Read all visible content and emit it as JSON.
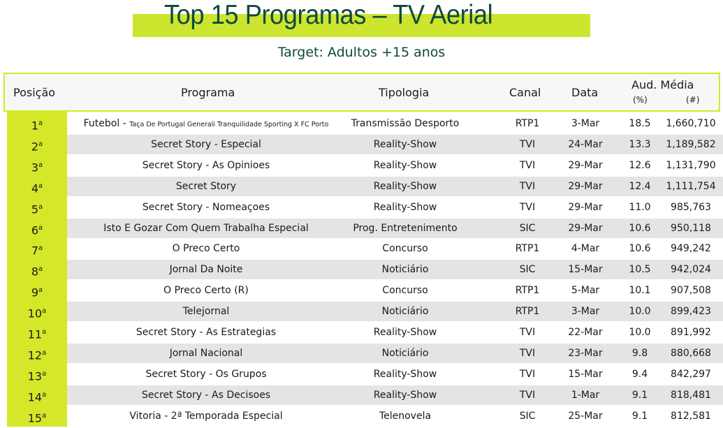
{
  "title": "Top 15 Programas – TV Aerial",
  "subtitle": "Target: Adultos +15 anos",
  "colors": {
    "accent": "#d4e829",
    "title": "#0f4a3b",
    "stripe": "#e4e4e4"
  },
  "headers": {
    "posicao": "Posição",
    "programa": "Programa",
    "tipologia": "Tipologia",
    "canal": "Canal",
    "data": "Data",
    "aud": "Aud. Média",
    "pct": "(%)",
    "num": "(#)"
  },
  "rows": [
    {
      "pos": "1",
      "sup": "a",
      "programa": "Futebol - ",
      "programa_small": "Taça De Portugal Generali Tranquilidade Sporting X FC Porto",
      "tipologia": "Transmissão Desporto",
      "canal": "RTP1",
      "data": "3-Mar",
      "pct": "18.5",
      "num": "1,660,710"
    },
    {
      "pos": "2",
      "sup": "a",
      "programa": "Secret Story - Especial",
      "tipologia": "Reality-Show",
      "canal": "TVI",
      "data": "24-Mar",
      "pct": "13.3",
      "num": "1,189,582"
    },
    {
      "pos": "3",
      "sup": "a",
      "programa": "Secret Story - As Opinioes",
      "tipologia": "Reality-Show",
      "canal": "TVI",
      "data": "29-Mar",
      "pct": "12.6",
      "num": "1,131,790"
    },
    {
      "pos": "4",
      "sup": "a",
      "programa": "Secret Story",
      "tipologia": "Reality-Show",
      "canal": "TVI",
      "data": "29-Mar",
      "pct": "12.4",
      "num": "1,111,754"
    },
    {
      "pos": "5",
      "sup": "a",
      "programa": "Secret Story - Nomeaçoes",
      "tipologia": "Reality-Show",
      "canal": "TVI",
      "data": "29-Mar",
      "pct": "11.0",
      "num": "985,763"
    },
    {
      "pos": "6",
      "sup": "a",
      "programa": "Isto E Gozar Com Quem Trabalha Especial",
      "tipologia": "Prog. Entretenimento",
      "canal": "SIC",
      "data": "29-Mar",
      "pct": "10.6",
      "num": "950,118"
    },
    {
      "pos": "7",
      "sup": "a",
      "programa": "O Preco Certo",
      "tipologia": "Concurso",
      "canal": "RTP1",
      "data": "4-Mar",
      "pct": "10.6",
      "num": "949,242"
    },
    {
      "pos": "8",
      "sup": "a",
      "programa": "Jornal Da Noite",
      "tipologia": "Noticiário",
      "canal": "SIC",
      "data": "15-Mar",
      "pct": "10.5",
      "num": "942,024"
    },
    {
      "pos": "9",
      "sup": "a",
      "programa": "O Preco Certo (R)",
      "tipologia": "Concurso",
      "canal": "RTP1",
      "data": "5-Mar",
      "pct": "10.1",
      "num": "907,508"
    },
    {
      "pos": "10",
      "sup": "a",
      "programa": "Telejornal",
      "tipologia": "Noticiário",
      "canal": "RTP1",
      "data": "3-Mar",
      "pct": "10.0",
      "num": "899,423"
    },
    {
      "pos": "11",
      "sup": "a",
      "programa": "Secret Story - As Estrategias",
      "tipologia": "Reality-Show",
      "canal": "TVI",
      "data": "22-Mar",
      "pct": "10.0",
      "num": "891,992"
    },
    {
      "pos": "12",
      "sup": "a",
      "programa": "Jornal Nacional",
      "tipologia": "Noticiário",
      "canal": "TVI",
      "data": "23-Mar",
      "pct": "9.8",
      "num": "880,668"
    },
    {
      "pos": "13",
      "sup": "a",
      "programa": "Secret Story - Os Grupos",
      "tipologia": "Reality-Show",
      "canal": "TVI",
      "data": "15-Mar",
      "pct": "9.4",
      "num": "842,297"
    },
    {
      "pos": "14",
      "sup": "a",
      "programa": "Secret Story - As Decisoes",
      "tipologia": "Reality-Show",
      "canal": "TVI",
      "data": "1-Mar",
      "pct": "9.1",
      "num": "818,481"
    },
    {
      "pos": "15",
      "sup": "a",
      "programa": "Vitoria - 2ª Temporada Especial",
      "tipologia": "Telenovela",
      "canal": "SIC",
      "data": "25-Mar",
      "pct": "9.1",
      "num": "812,581"
    }
  ]
}
